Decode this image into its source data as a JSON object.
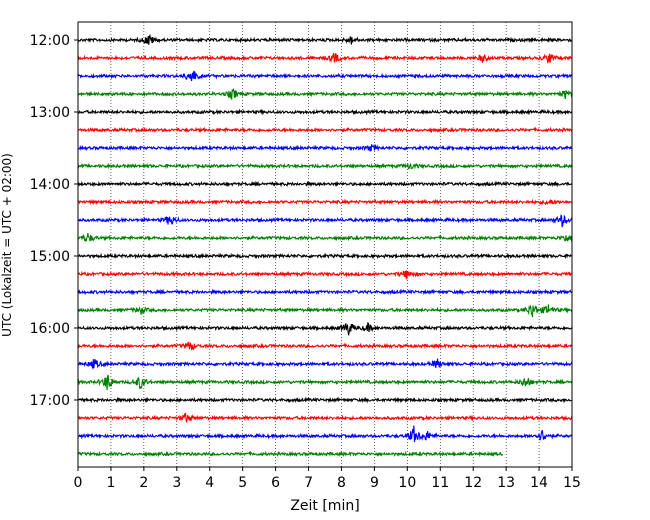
{
  "chart_data": {
    "type": "line",
    "title": "",
    "xlabel": "Zeit  [min]",
    "ylabel": "UTC (Lokalzeit = UTC + 02:00)",
    "xlim": [
      0,
      15
    ],
    "x_ticks": [
      0,
      1,
      2,
      3,
      4,
      5,
      6,
      7,
      8,
      9,
      10,
      11,
      12,
      13,
      14,
      15
    ],
    "x_tick_labels": [
      "0",
      "1",
      "2",
      "3",
      "4",
      "5",
      "6",
      "7",
      "8",
      "9",
      "10",
      "11",
      "12",
      "13",
      "14",
      "15"
    ],
    "y_tick_labels": [
      {
        "label": "12:00",
        "trace_index": 0
      },
      {
        "label": "13:00",
        "trace_index": 4
      },
      {
        "label": "14:00",
        "trace_index": 8
      },
      {
        "label": "15:00",
        "trace_index": 12
      },
      {
        "label": "16:00",
        "trace_index": 16
      },
      {
        "label": "17:00",
        "trace_index": 20
      }
    ],
    "grid": "vertical dotted at each minute",
    "color_cycle": [
      "#000000",
      "#ff0000",
      "#0000ff",
      "#008000"
    ],
    "traces": [
      {
        "start": "12:00",
        "end_min": 15,
        "events": [
          [
            2.15,
            6
          ],
          [
            8.3,
            4
          ]
        ]
      },
      {
        "start": "12:15",
        "end_min": 15,
        "events": [
          [
            7.8,
            5
          ],
          [
            12.3,
            4
          ],
          [
            14.3,
            6
          ]
        ]
      },
      {
        "start": "12:30",
        "end_min": 15,
        "events": [
          [
            3.45,
            9
          ]
        ]
      },
      {
        "start": "12:45",
        "end_min": 15,
        "events": [
          [
            4.7,
            5
          ],
          [
            14.8,
            4
          ]
        ]
      },
      {
        "start": "13:00",
        "end_min": 15,
        "events": []
      },
      {
        "start": "13:15",
        "end_min": 15,
        "events": []
      },
      {
        "start": "13:30",
        "end_min": 15,
        "events": [
          [
            8.9,
            3
          ]
        ]
      },
      {
        "start": "13:45",
        "end_min": 15,
        "events": [
          [
            10.1,
            3
          ]
        ]
      },
      {
        "start": "14:00",
        "end_min": 15,
        "events": []
      },
      {
        "start": "14:15",
        "end_min": 15,
        "events": [
          [
            14.3,
            3
          ]
        ]
      },
      {
        "start": "14:30",
        "end_min": 15,
        "events": [
          [
            2.8,
            6
          ],
          [
            14.7,
            6
          ]
        ]
      },
      {
        "start": "14:45",
        "end_min": 15,
        "events": [
          [
            0.3,
            5
          ],
          [
            14.8,
            4
          ]
        ]
      },
      {
        "start": "15:00",
        "end_min": 15,
        "events": []
      },
      {
        "start": "15:15",
        "end_min": 15,
        "events": [
          [
            10.0,
            5
          ]
        ]
      },
      {
        "start": "15:30",
        "end_min": 15,
        "events": []
      },
      {
        "start": "15:45",
        "end_min": 15,
        "events": [
          [
            1.9,
            4
          ],
          [
            13.8,
            8
          ],
          [
            14.3,
            6
          ]
        ]
      },
      {
        "start": "16:00",
        "end_min": 15,
        "events": [
          [
            8.2,
            8
          ],
          [
            8.8,
            4
          ]
        ]
      },
      {
        "start": "16:15",
        "end_min": 15,
        "events": [
          [
            3.4,
            5
          ]
        ]
      },
      {
        "start": "16:30",
        "end_min": 15,
        "events": [
          [
            0.5,
            5
          ],
          [
            10.9,
            5
          ]
        ]
      },
      {
        "start": "16:45",
        "end_min": 15,
        "events": [
          [
            0.9,
            9
          ],
          [
            1.9,
            7
          ],
          [
            13.6,
            6
          ]
        ]
      },
      {
        "start": "17:00",
        "end_min": 15,
        "events": []
      },
      {
        "start": "17:15",
        "end_min": 15,
        "events": [
          [
            3.3,
            5
          ]
        ]
      },
      {
        "start": "17:30",
        "end_min": 15,
        "events": [
          [
            10.2,
            9
          ],
          [
            10.6,
            5
          ],
          [
            14.1,
            6
          ]
        ]
      },
      {
        "start": "17:45",
        "end_min": 12.9,
        "events": []
      }
    ]
  }
}
